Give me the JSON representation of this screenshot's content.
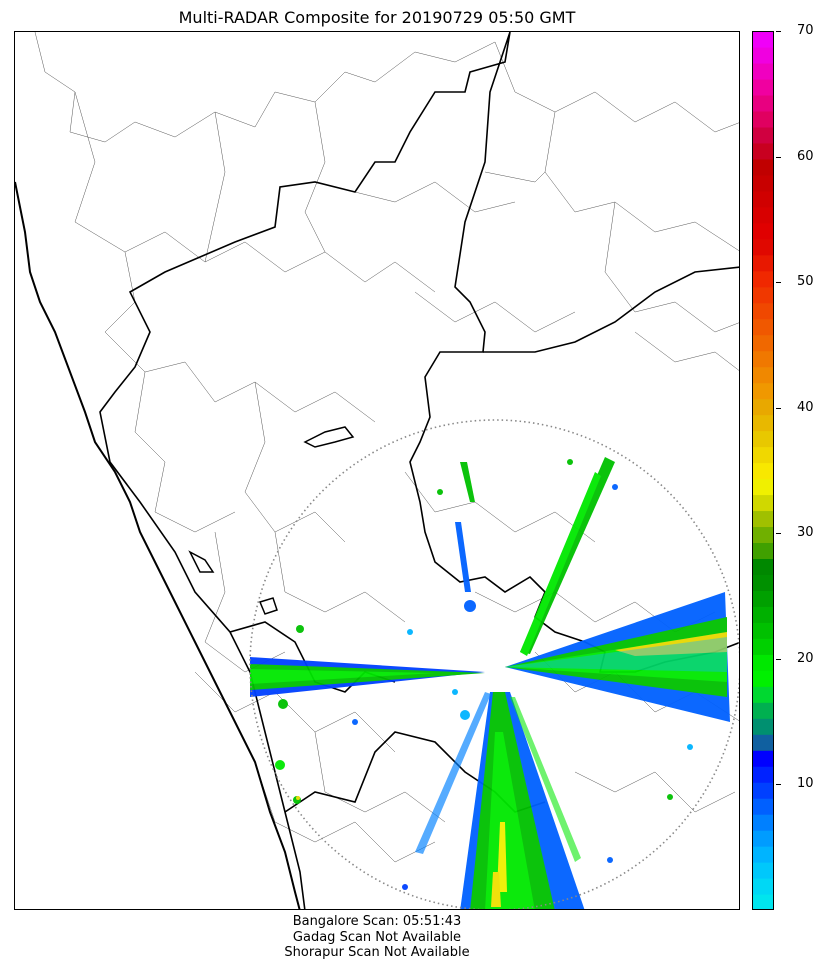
{
  "title": "Multi-RADAR Composite for 20190729 05:50 GMT",
  "colorbar": {
    "min": 0,
    "max": 70,
    "ticks": [
      "10",
      "20",
      "30",
      "40",
      "50",
      "60",
      "70"
    ],
    "tick_values": [
      10,
      20,
      30,
      40,
      50,
      60,
      70
    ],
    "colors": [
      "#00e5ee",
      "#00d8f5",
      "#00c8fb",
      "#00b4ff",
      "#009cff",
      "#0080ff",
      "#0060ff",
      "#0040ff",
      "#0022ff",
      "#0000ff",
      "#1060a0",
      "#009070",
      "#00b050",
      "#00d830",
      "#00f000",
      "#00e800",
      "#00d000",
      "#00c000",
      "#00b000",
      "#00a000",
      "#009000",
      "#008800",
      "#40a000",
      "#70b000",
      "#a0c000",
      "#d0d800",
      "#f0f000",
      "#f8e800",
      "#f0d800",
      "#e8c800",
      "#e8b800",
      "#e8a800",
      "#f09800",
      "#f08800",
      "#f07800",
      "#f06800",
      "#f05800",
      "#f04800",
      "#f03800",
      "#f02800",
      "#e81800",
      "#e00800",
      "#e00000",
      "#d80000",
      "#d00000",
      "#c80000",
      "#c00000",
      "#c80020",
      "#d00040",
      "#e00060",
      "#e80080",
      "#f000a0",
      "#f000c0",
      "#f000e0",
      "#f000f8"
    ]
  },
  "radar": {
    "site": "Bangalore",
    "range_ring_style": "dotted gray"
  },
  "footer": {
    "line1": "Bangalore Scan: 05:51:43",
    "line2": "Gadag Scan Not Available",
    "line3": "Shorapur Scan Not Available"
  }
}
